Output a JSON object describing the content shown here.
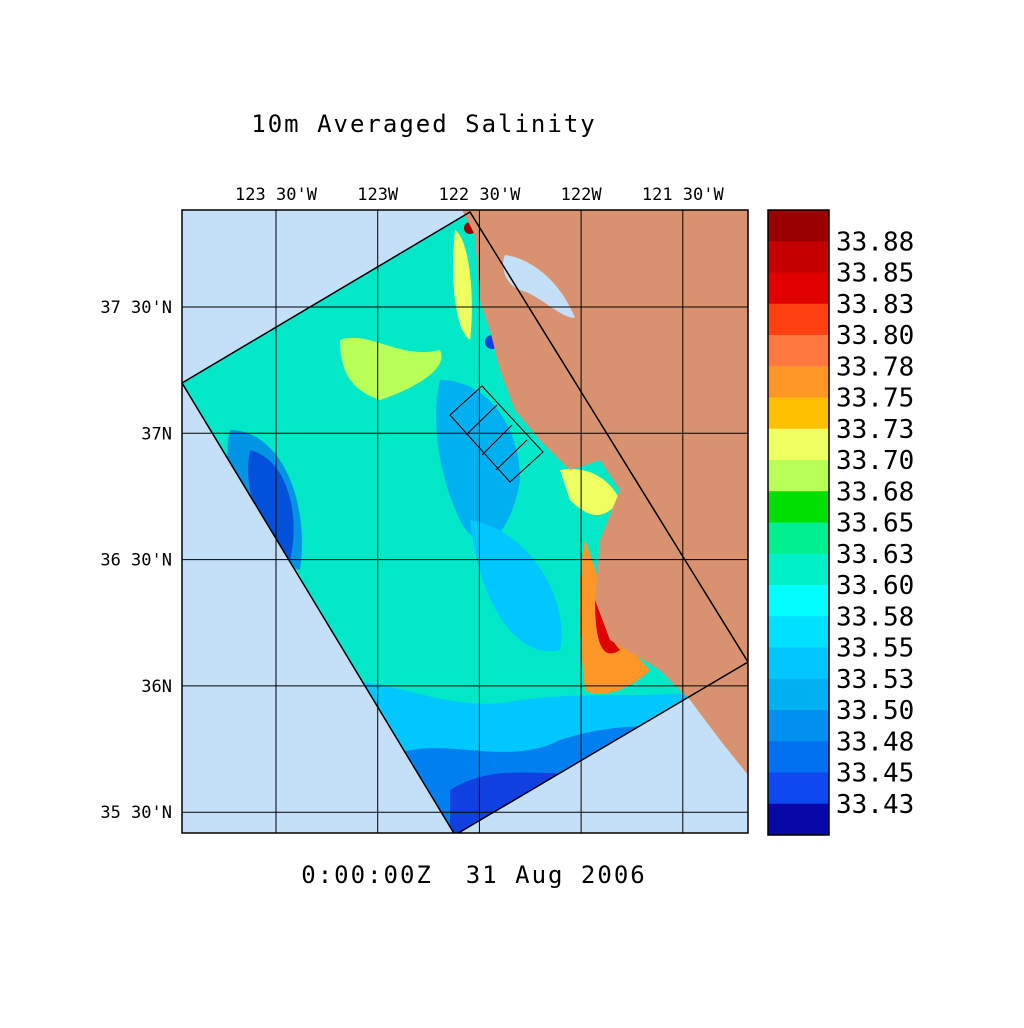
{
  "title": "10m Averaged Salinity",
  "timestamp": "0:00:00Z  31 Aug 2006",
  "longitude_labels": [
    "123 30'W",
    "123W",
    "122 30'W",
    "122W",
    "121 30'W"
  ],
  "latitude_labels": [
    "37 30'N",
    "37N",
    "36 30'N",
    "36N",
    "35 30'N"
  ],
  "colorbar": {
    "labels": [
      "33.88",
      "33.85",
      "33.83",
      "33.80",
      "33.78",
      "33.75",
      "33.73",
      "33.70",
      "33.68",
      "33.65",
      "33.63",
      "33.60",
      "33.58",
      "33.55",
      "33.53",
      "33.50",
      "33.48",
      "33.45",
      "33.43"
    ],
    "colors": [
      "#9a0000",
      "#c40000",
      "#e00000",
      "#ff4010",
      "#ff7840",
      "#ff9628",
      "#ffc000",
      "#eeff60",
      "#b8ff58",
      "#00e000",
      "#00f090",
      "#00f0c8",
      "#00ffff",
      "#00e0ff",
      "#00c8ff",
      "#00b0f0",
      "#0090f0",
      "#0070f0",
      "#1048f0",
      "#0808a8"
    ]
  }
}
